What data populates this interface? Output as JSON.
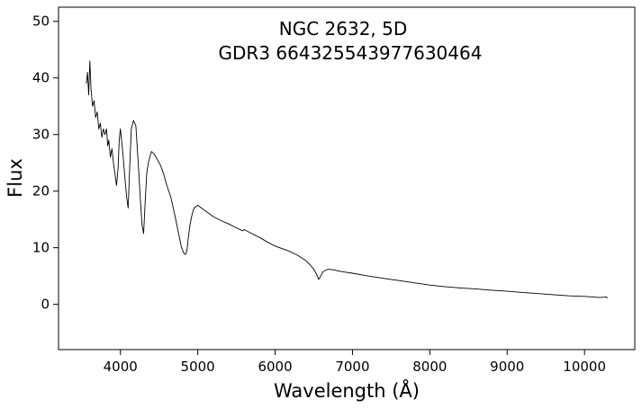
{
  "chart_data": {
    "type": "line",
    "title": [
      "NGC 2632, 5D",
      "GDR3 664325543977630464"
    ],
    "xlabel": "Wavelength (Å)",
    "ylabel": "Flux",
    "xlim": [
      3200,
      10650
    ],
    "ylim": [
      -8,
      52.5
    ],
    "xticks": [
      4000,
      5000,
      6000,
      7000,
      8000,
      9000,
      10000
    ],
    "yticks": [
      0,
      10,
      20,
      30,
      40,
      50
    ],
    "grid": false,
    "series_color": "#000000",
    "series": [
      {
        "x": [
          3560,
          3575,
          3590,
          3605,
          3620,
          3640,
          3660,
          3680,
          3700,
          3720,
          3740,
          3760,
          3780,
          3800,
          3820,
          3835,
          3850,
          3870,
          3890,
          3910,
          3930,
          3950,
          3970,
          3985,
          4000,
          4030,
          4060,
          4080,
          4100,
          4120,
          4140,
          4170,
          4200,
          4230,
          4260,
          4280,
          4300,
          4320,
          4340,
          4360,
          4380,
          4400,
          4440,
          4480,
          4520,
          4560,
          4600,
          4650,
          4700,
          4730,
          4760,
          4790,
          4820,
          4840,
          4860,
          4880,
          4900,
          4920,
          4950,
          5000,
          5050,
          5100,
          5150,
          5200,
          5300,
          5400,
          5500,
          5580,
          5600,
          5700,
          5800,
          5900,
          6000,
          6100,
          6200,
          6300,
          6400,
          6450,
          6500,
          6540,
          6563,
          6590,
          6620,
          6680,
          6750,
          6850,
          7000,
          7200,
          7400,
          7600,
          7800,
          8000,
          8200,
          8400,
          8600,
          8800,
          9000,
          9200,
          9400,
          9600,
          9800,
          10000,
          10100,
          10200,
          10280,
          10300
        ],
        "y": [
          39,
          41,
          37,
          43,
          38,
          35,
          36,
          33,
          34,
          31,
          32,
          29.5,
          31,
          30,
          31,
          28,
          29,
          26,
          27.5,
          25,
          23,
          21,
          24,
          29,
          31,
          27,
          22,
          19,
          17,
          24,
          31,
          32.5,
          31.5,
          25,
          18,
          14,
          12.5,
          18,
          23,
          25,
          26,
          27,
          26.5,
          25.5,
          24.5,
          23,
          21,
          19,
          16,
          14,
          12,
          10,
          9,
          8.8,
          9.5,
          12,
          14,
          15.5,
          17,
          17.5,
          17,
          16.5,
          16,
          15.5,
          14.8,
          14.2,
          13.5,
          13,
          13.2,
          12.5,
          11.8,
          11,
          10.3,
          9.8,
          9.3,
          8.6,
          7.7,
          7,
          6.2,
          5.2,
          4.4,
          5,
          5.8,
          6.2,
          6.1,
          5.8,
          5.5,
          5,
          4.6,
          4.2,
          3.8,
          3.4,
          3.1,
          2.9,
          2.7,
          2.5,
          2.3,
          2.1,
          1.9,
          1.7,
          1.5,
          1.4,
          1.3,
          1.2,
          1.3,
          1.1
        ]
      }
    ]
  }
}
